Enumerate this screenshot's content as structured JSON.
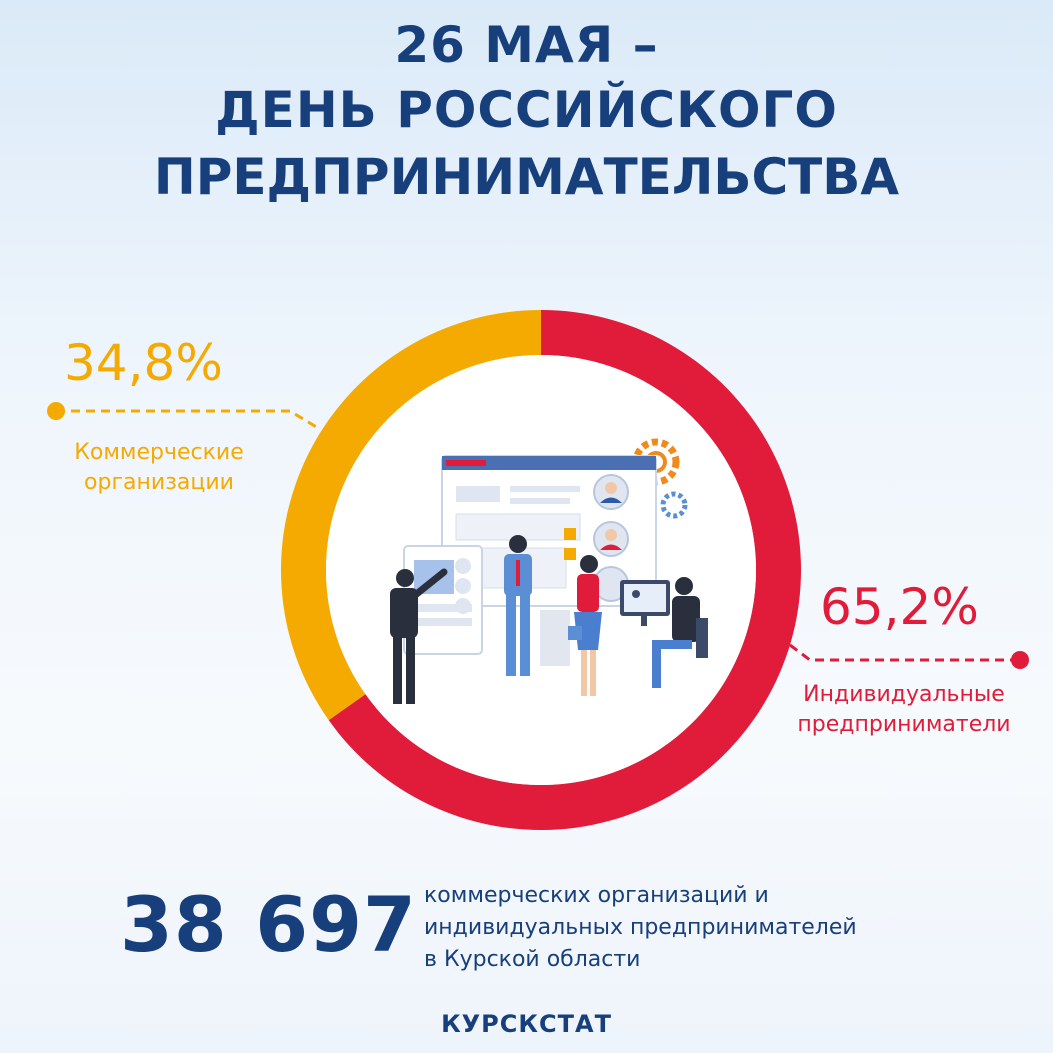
{
  "title": {
    "line1": "26 МАЯ –",
    "line2": "ДЕНЬ РОССИЙСКОГО",
    "line3": "ПРЕДПРИНИМАТЕЛЬСТВА"
  },
  "chart_data": {
    "type": "pie",
    "categories": [
      "Коммерческие организации",
      "Индивидуальные предприниматели"
    ],
    "values": [
      34.8,
      65.2
    ],
    "value_labels": [
      "34,8%",
      "65,2%"
    ],
    "label_lines": [
      [
        "Коммерческие",
        "организации"
      ],
      [
        "Индивидуальные",
        "предприниматели"
      ]
    ],
    "colors": [
      "#f4aa00",
      "#e01c3a"
    ],
    "donut": true
  },
  "summary": {
    "number": "38 697",
    "line1": "коммерческих организаций и",
    "line2": "индивидуальных предпринимателей",
    "line3": "в  Курской области"
  },
  "source": "КУРСКСТАТ"
}
